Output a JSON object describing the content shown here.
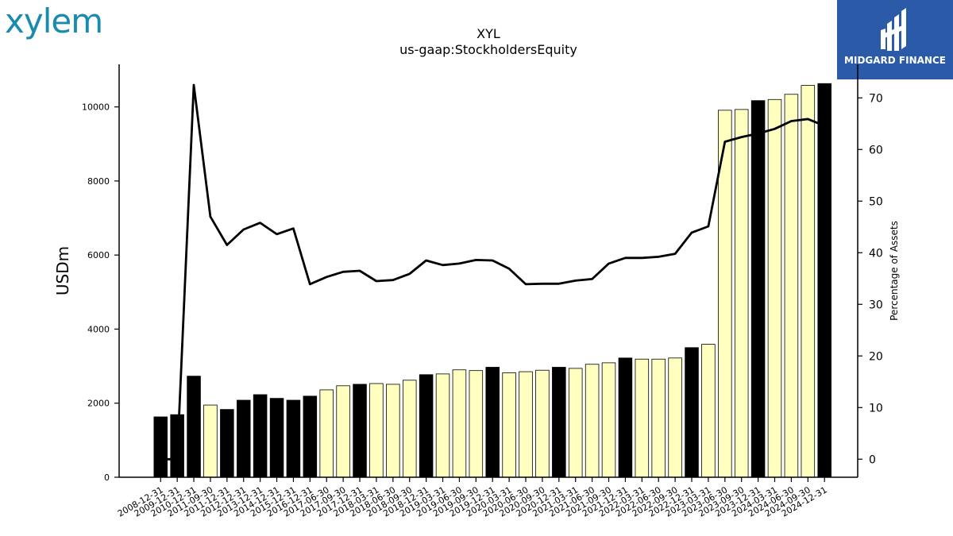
{
  "brand": {
    "left_logo_text": "xylem",
    "right_logo_text": "MIDGARD FINANCE",
    "right_logo_color": "#2a5aa8",
    "left_logo_color": "#1a8bb0"
  },
  "chart_data": {
    "type": "bar",
    "title": "XYL",
    "subtitle": "us-gaap:StockholdersEquity",
    "ylabel": "USDm",
    "y2label": "Percentage of Assets",
    "ylim": [
      0,
      11150
    ],
    "y2lim": [
      -3.5,
      76.5
    ],
    "yticks": [
      0,
      2000,
      4000,
      6000,
      8000,
      10000
    ],
    "y2ticks": [
      0,
      10,
      20,
      30,
      40,
      50,
      60,
      70
    ],
    "colors": {
      "annual": "#000000",
      "quarterly": "#ffffc0",
      "line": "#000000"
    },
    "categories": [
      "2008-12-31",
      "2009-12-31",
      "2010-12-31",
      "2011-09-30",
      "2011-12-31",
      "2012-12-31",
      "2013-12-31",
      "2014-12-31",
      "2015-12-31",
      "2016-12-31",
      "2017-06-30",
      "2017-09-30",
      "2017-12-31",
      "2018-03-31",
      "2018-06-30",
      "2018-09-30",
      "2018-12-31",
      "2019-03-31",
      "2019-06-30",
      "2019-09-30",
      "2019-12-31",
      "2020-03-31",
      "2020-06-30",
      "2020-09-30",
      "2020-12-31",
      "2021-03-31",
      "2021-06-30",
      "2021-09-30",
      "2021-12-31",
      "2022-03-31",
      "2022-06-30",
      "2022-09-30",
      "2022-12-31",
      "2023-03-31",
      "2023-06-30",
      "2023-09-30",
      "2023-12-31",
      "2024-03-31",
      "2024-06-30",
      "2024-09-30",
      "2024-12-31"
    ],
    "period_type": [
      "annual",
      "annual",
      "annual",
      "quarterly",
      "annual",
      "annual",
      "annual",
      "annual",
      "annual",
      "annual",
      "quarterly",
      "quarterly",
      "annual",
      "quarterly",
      "quarterly",
      "quarterly",
      "annual",
      "quarterly",
      "quarterly",
      "quarterly",
      "annual",
      "quarterly",
      "quarterly",
      "quarterly",
      "annual",
      "quarterly",
      "quarterly",
      "quarterly",
      "annual",
      "quarterly",
      "quarterly",
      "quarterly",
      "annual",
      "quarterly",
      "quarterly",
      "quarterly",
      "annual",
      "quarterly",
      "quarterly",
      "quarterly",
      "annual"
    ],
    "series": [
      {
        "values": [
          1630,
          1690,
          2730,
          1950,
          1830,
          2080,
          2230,
          2130,
          2080,
          2190,
          2360,
          2470,
          2510,
          2530,
          2510,
          2620,
          2770,
          2790,
          2900,
          2880,
          2970,
          2820,
          2850,
          2890,
          2970,
          2940,
          3050,
          3090,
          3220,
          3190,
          3190,
          3220,
          3500,
          3590,
          9910,
          9930,
          10170,
          10200,
          10340,
          10580,
          10630
        ]
      },
      {
        "axis": "right",
        "type": "line",
        "values": [
          0,
          0,
          72.5,
          47,
          41.5,
          44.5,
          45.8,
          43.6,
          44.7,
          33.9,
          35.3,
          36.3,
          36.5,
          34.5,
          34.7,
          35.9,
          38.5,
          37.6,
          37.9,
          38.6,
          38.5,
          36.9,
          33.9,
          34.0,
          34.0,
          34.6,
          34.9,
          37.9,
          39.0,
          39.0,
          39.2,
          39.8,
          43.9,
          45.1,
          61.5,
          62.4,
          63.1,
          64.0,
          65.5,
          65.9,
          64.6
        ]
      }
    ]
  }
}
